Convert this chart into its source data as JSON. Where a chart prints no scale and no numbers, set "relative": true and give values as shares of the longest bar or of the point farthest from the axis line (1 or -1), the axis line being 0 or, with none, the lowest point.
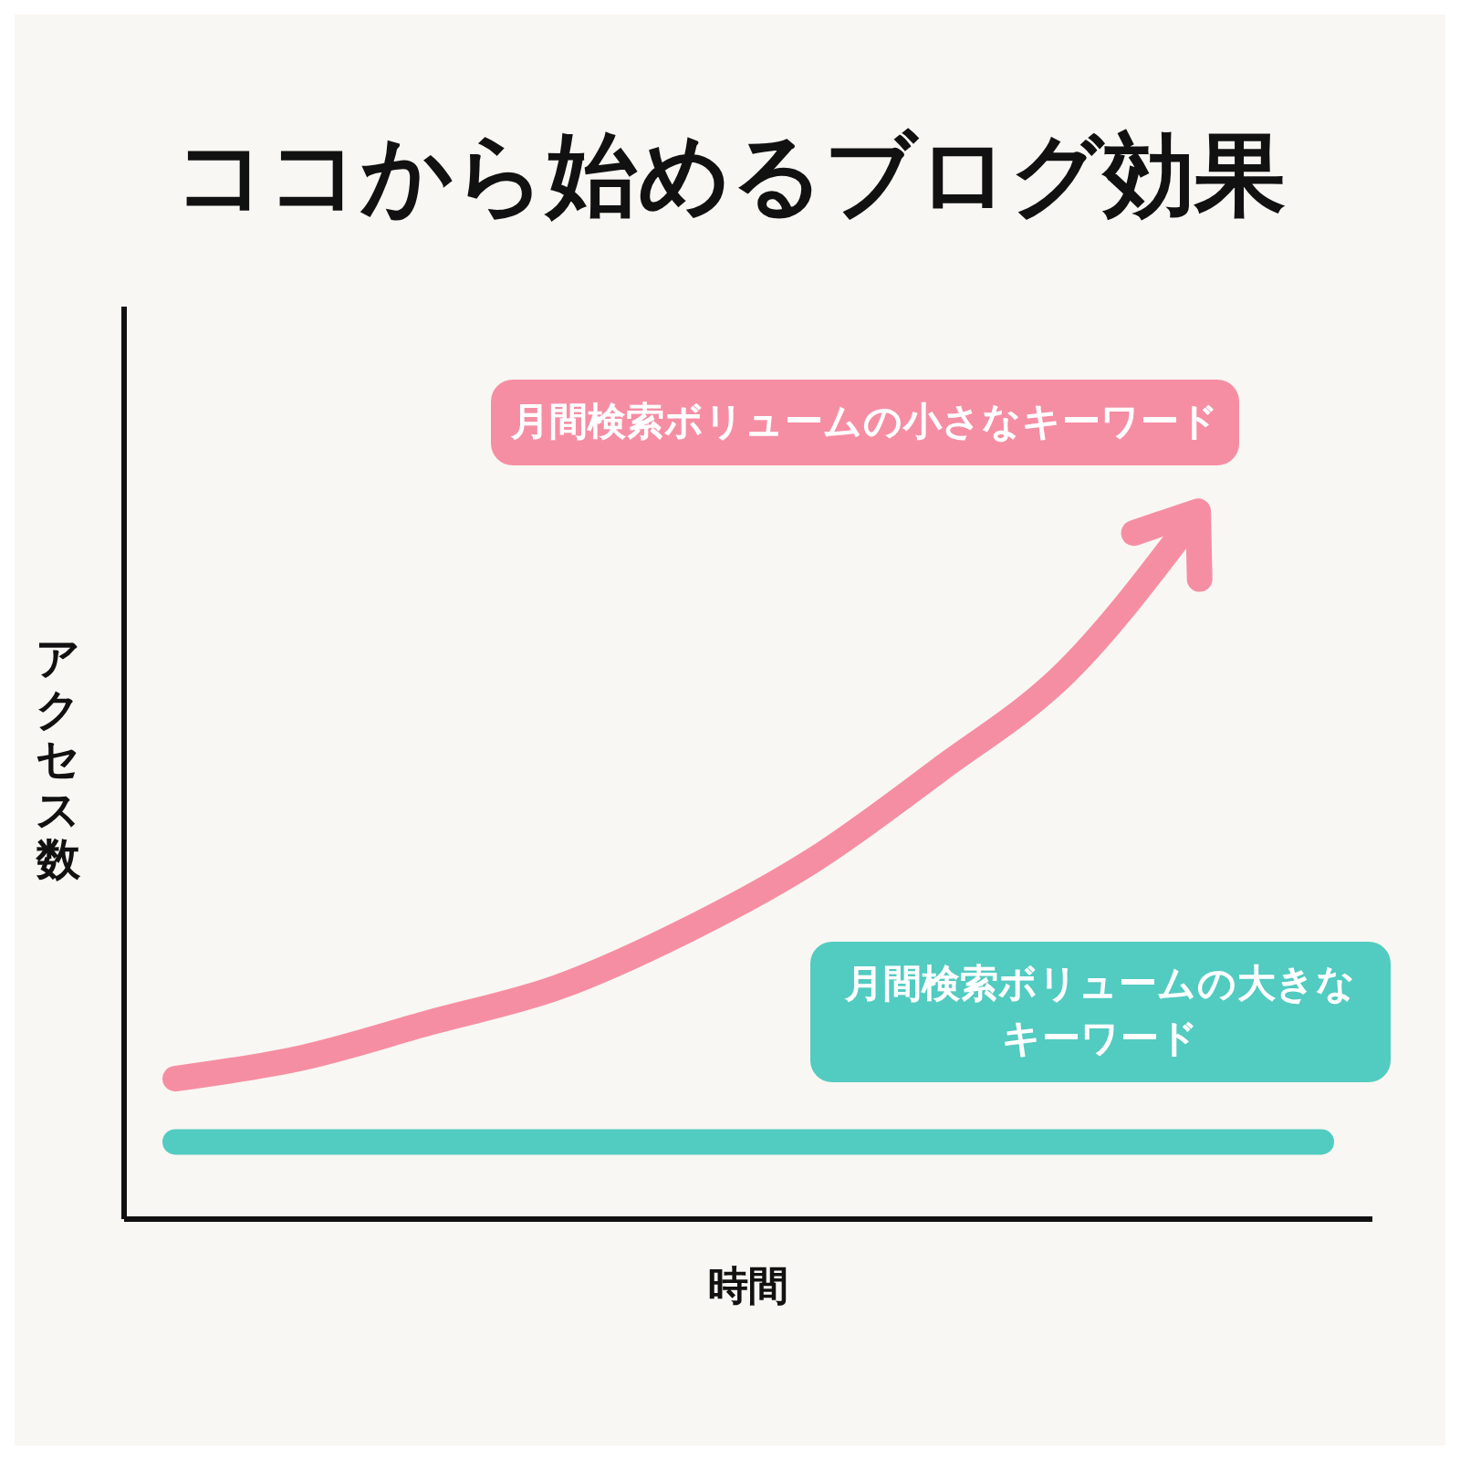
{
  "chart_data": {
    "type": "line",
    "title": "ココから始めるブログ効果",
    "xlabel": "時間",
    "ylabel": "アクセス数",
    "relative": true,
    "categories": [
      null,
      null,
      null,
      null,
      null,
      null,
      null,
      null,
      null,
      null
    ],
    "series": [
      {
        "name": "月間検索ボリュームの小さなキーワード",
        "color": "#f68ea3",
        "values": [
          0.2,
          0.23,
          0.28,
          0.33,
          0.41,
          0.51,
          0.64,
          0.78,
          1,
          null
        ]
      },
      {
        "name": "月間検索ボリュームの大きなキーワード",
        "color": "#52cbc1",
        "values": [
          0.11,
          0.11,
          0.11,
          0.11,
          0.11,
          0.11,
          0.11,
          0.11,
          0.11,
          0.11
        ]
      }
    ]
  }
}
